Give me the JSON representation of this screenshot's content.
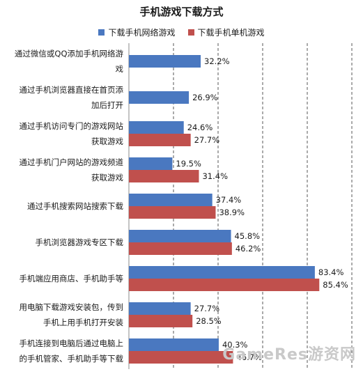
{
  "chart_data": {
    "type": "bar",
    "orientation": "horizontal",
    "title": "手机游戏下载方式",
    "categories": [
      [
        "通过微信或QQ添加手机网络游",
        "戏"
      ],
      [
        "通过手机浏览器直接在首页添",
        "加后打开"
      ],
      [
        "通过手机访问专门的游戏网站",
        "获取游戏"
      ],
      [
        "通过手机门户网站的游戏频道",
        "获取游戏"
      ],
      [
        "通过手机搜索网站搜索下载"
      ],
      [
        "手机浏览器游戏专区下载"
      ],
      [
        "手机端应用商店、手机助手等"
      ],
      [
        "用电脑下载游戏安装包，传到",
        "手机上用手机打开安装"
      ],
      [
        "手机连接到电脑后通过电脑上",
        "的手机管家、手机助手等下载"
      ]
    ],
    "series": [
      {
        "name": "下载手机网络游戏",
        "color": "#4a78c0",
        "values": [
          32.2,
          26.9,
          24.6,
          19.5,
          37.4,
          45.8,
          83.4,
          27.7,
          40.3
        ],
        "labels": [
          "32.2%",
          "26.9%",
          "24.6%",
          "19.5%",
          "37.4%",
          "45.8%",
          "83.4%",
          "27.7%",
          "40.3%"
        ]
      },
      {
        "name": "下载手机单机游戏",
        "color": "#c0504d",
        "values": [
          null,
          null,
          27.7,
          31.4,
          38.9,
          46.2,
          85.4,
          28.5,
          46.7
        ],
        "labels": [
          null,
          null,
          "27.7%",
          "31.4%",
          "38.9%",
          "46.2%",
          "85.4%",
          "28.5%",
          "46.7%"
        ]
      }
    ],
    "xlim": [
      0,
      100
    ],
    "grid": true,
    "legend_position": "top"
  },
  "watermark": "GameRes游资网"
}
